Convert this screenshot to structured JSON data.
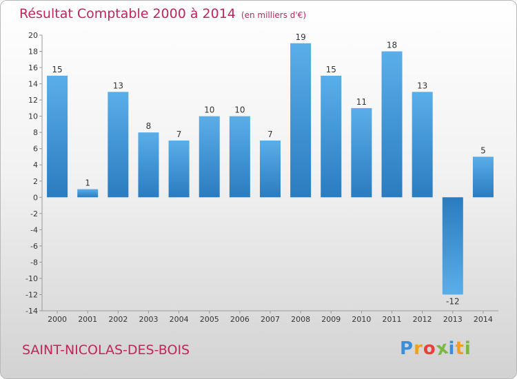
{
  "chart_data": {
    "type": "bar",
    "title": "Résultat Comptable 2000 à 2014",
    "subtitle": "(en milliers d'€)",
    "categories": [
      "2000",
      "2001",
      "2002",
      "2003",
      "2004",
      "2005",
      "2006",
      "2007",
      "2008",
      "2009",
      "2010",
      "2011",
      "2012",
      "2013",
      "2014"
    ],
    "values": [
      15,
      1,
      13,
      8,
      7,
      10,
      10,
      7,
      19,
      15,
      11,
      18,
      13,
      -12,
      5
    ],
    "ylim": [
      -14,
      20
    ],
    "yticks": [
      -14,
      -12,
      -10,
      -8,
      -6,
      -4,
      -2,
      0,
      2,
      4,
      6,
      8,
      10,
      12,
      14,
      16,
      18,
      20
    ],
    "xlabel": "",
    "ylabel": "",
    "grid": false,
    "colors": {
      "bar_light": "#5aaee8",
      "bar_dark": "#2a7cc0"
    }
  },
  "footer": {
    "city": "SAINT-NICOLAS-DES-BOIS",
    "logo_letters": [
      "P",
      "r",
      "o",
      "x",
      "i",
      "t",
      "i"
    ],
    "logo_colors": [
      "#3a8fd8",
      "#f0a020",
      "#e8403c",
      "#7ab840",
      "#3a8fd8",
      "#f0a020",
      "#7ab840"
    ]
  }
}
